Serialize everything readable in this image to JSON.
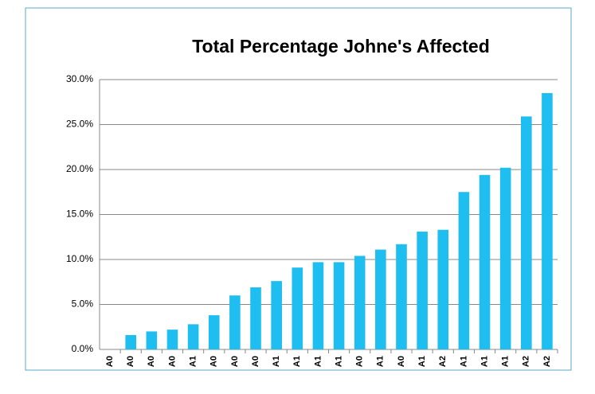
{
  "chart_data": {
    "type": "bar",
    "title": "Total Percentage Johne's Affected",
    "categories": [
      "A0",
      "A0",
      "A0",
      "A0",
      "A1",
      "A0",
      "A0",
      "A0",
      "A1",
      "A1",
      "A1",
      "A1",
      "A0",
      "A1",
      "A0",
      "A1",
      "A2",
      "A1",
      "A1",
      "A1",
      "A2",
      "A2"
    ],
    "values": [
      0,
      1.6,
      2.0,
      2.2,
      2.8,
      3.8,
      6.0,
      6.9,
      7.6,
      9.1,
      9.7,
      9.7,
      10.4,
      11.1,
      11.7,
      13.1,
      13.3,
      17.5,
      19.4,
      20.2,
      25.9,
      28.5
    ],
    "color": "#1ebef0",
    "ylim": [
      0,
      30
    ],
    "yticks": [
      {
        "value": 0,
        "label": "0.0%"
      },
      {
        "value": 5,
        "label": "5.0%"
      },
      {
        "value": 10,
        "label": "10.0%"
      },
      {
        "value": 15,
        "label": "15.0%"
      },
      {
        "value": 20,
        "label": "20.0%"
      },
      {
        "value": 25,
        "label": "25.0%"
      },
      {
        "value": 30,
        "label": "30.0%"
      }
    ],
    "grid": true
  }
}
